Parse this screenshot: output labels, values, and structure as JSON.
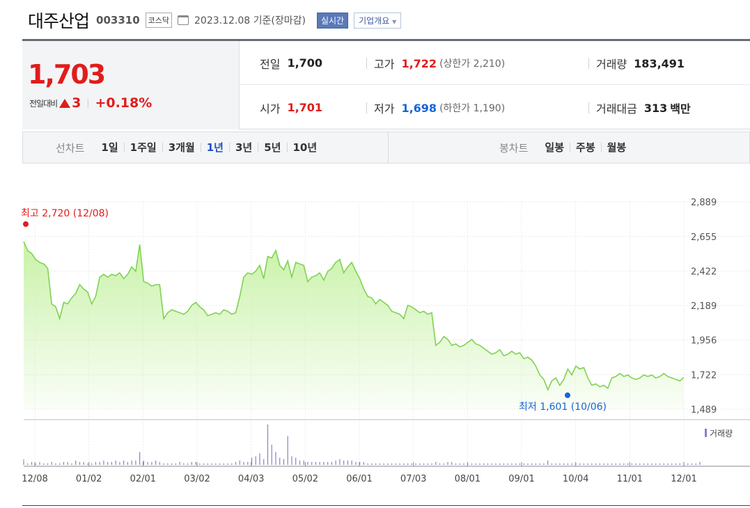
{
  "header": {
    "name": "대주산업",
    "code": "003310",
    "market": "코스닥",
    "asof": "2023.12.08 기준(장마감)",
    "realtime_label": "실시간",
    "corp_label": "기업개요"
  },
  "quote": {
    "price": "1,703",
    "change_label": "전일대비",
    "change": "3",
    "change_pct": "+0.18%",
    "prev_label": "전일",
    "prev": "1,700",
    "high_label": "고가",
    "high": "1,722",
    "upper_limit": "(상한가 2,210)",
    "volume_label": "거래량",
    "volume": "183,491",
    "open_label": "시가",
    "open": "1,701",
    "low_label": "저가",
    "low": "1,698",
    "lower_limit": "(하한가 1,190)",
    "amount_label": "거래대금",
    "amount": "313",
    "amount_unit": "백만"
  },
  "period": {
    "line_title": "선차트",
    "line_items": [
      "1일",
      "1주일",
      "3개월",
      "1년",
      "3년",
      "5년",
      "10년"
    ],
    "active": "1년",
    "candle_title": "봉차트",
    "candle_items": [
      "일봉",
      "주봉",
      "월봉"
    ]
  },
  "colors": {
    "up": "#e11c1c",
    "down": "#1665d8",
    "line": "#7ed350",
    "area": "#c9f2a8",
    "volume": "#8c7ec8"
  },
  "chart_data": {
    "type": "area",
    "y_ticks": [
      "2,889",
      "2,655",
      "2,422",
      "2,189",
      "1,956",
      "1,722",
      "1,489"
    ],
    "ylim": [
      1489,
      2889
    ],
    "x_ticks": [
      "12/08",
      "01/02",
      "02/01",
      "03/02",
      "04/03",
      "05/02",
      "06/01",
      "07/03",
      "08/01",
      "09/01",
      "10/04",
      "11/01",
      "12/01"
    ],
    "high_annotation": "최고 2,720 (12/08)",
    "low_annotation": "최저 1,601 (10/06)",
    "volume_label": "거래량",
    "series": [
      {
        "values": [
          2620,
          2560,
          2540,
          2500,
          2480,
          2470,
          2440,
          2200,
          2180,
          2100,
          2210,
          2200,
          2240,
          2270,
          2330,
          2300,
          2280,
          2200,
          2250,
          2380,
          2400,
          2380,
          2400,
          2390,
          2410,
          2370,
          2400,
          2450,
          2420,
          2600,
          2350,
          2340,
          2320,
          2330,
          2330,
          2100,
          2140,
          2160,
          2150,
          2140,
          2130,
          2150,
          2190,
          2210,
          2180,
          2160,
          2120,
          2130,
          2140,
          2130,
          2160,
          2150,
          2130,
          2140,
          2250,
          2380,
          2410,
          2400,
          2420,
          2460,
          2370,
          2520,
          2510,
          2560,
          2460,
          2430,
          2490,
          2380,
          2480,
          2470,
          2460,
          2350,
          2380,
          2390,
          2410,
          2360,
          2420,
          2440,
          2480,
          2500,
          2410,
          2450,
          2480,
          2420,
          2370,
          2300,
          2250,
          2240,
          2200,
          2230,
          2210,
          2190,
          2150,
          2140,
          2130,
          2100,
          2190,
          2180,
          2160,
          2140,
          2150,
          2130,
          2140,
          1920,
          1940,
          1980,
          1960,
          1920,
          1930,
          1910,
          1920,
          1940,
          1960,
          1930,
          1920,
          1900,
          1880,
          1860,
          1870,
          1890,
          1850,
          1860,
          1880,
          1860,
          1870,
          1830,
          1840,
          1820,
          1780,
          1720,
          1690,
          1620,
          1680,
          1700,
          1650,
          1690,
          1760,
          1720,
          1780,
          1760,
          1770,
          1700,
          1650,
          1660,
          1640,
          1650,
          1630,
          1700,
          1710,
          1730,
          1710,
          1720,
          1700,
          1690,
          1700,
          1720,
          1710,
          1720,
          1700,
          1710,
          1730,
          1710,
          1700,
          1690,
          1680,
          1703
        ]
      }
    ],
    "volume": [
      2,
      1,
      2,
      1,
      2,
      1,
      1,
      2,
      1,
      1,
      2,
      2,
      1,
      3,
      2,
      2,
      1,
      1,
      2,
      2,
      3,
      2,
      2,
      3,
      2,
      3,
      2,
      3,
      3,
      9,
      3,
      2,
      2,
      3,
      2,
      1,
      1,
      1,
      1,
      2,
      1,
      1,
      2,
      2,
      1,
      1,
      1,
      1,
      1,
      1,
      1,
      1,
      1,
      2,
      3,
      2,
      2,
      5,
      6,
      8,
      4,
      28,
      14,
      9,
      5,
      4,
      20,
      6,
      5,
      3,
      3,
      2,
      2,
      2,
      2,
      2,
      2,
      2,
      3,
      4,
      3,
      3,
      3,
      2,
      2,
      2,
      1,
      1,
      1,
      1,
      1,
      1,
      1,
      1,
      1,
      1,
      1,
      1,
      1,
      1,
      1,
      1,
      1,
      2,
      1,
      1,
      2,
      2,
      1,
      1,
      1,
      1,
      1,
      1,
      1,
      1,
      1,
      1,
      1,
      1,
      1,
      1,
      1,
      1,
      1,
      1,
      1,
      1,
      1,
      1,
      1,
      3,
      1,
      1,
      1,
      1,
      1,
      1,
      1,
      1,
      1,
      1,
      1,
      1,
      1,
      1,
      1,
      1,
      1,
      1,
      1,
      1,
      1,
      1,
      1,
      1,
      1,
      1,
      1,
      1,
      1,
      1,
      1,
      1,
      1,
      1,
      1,
      1,
      1,
      2
    ]
  }
}
